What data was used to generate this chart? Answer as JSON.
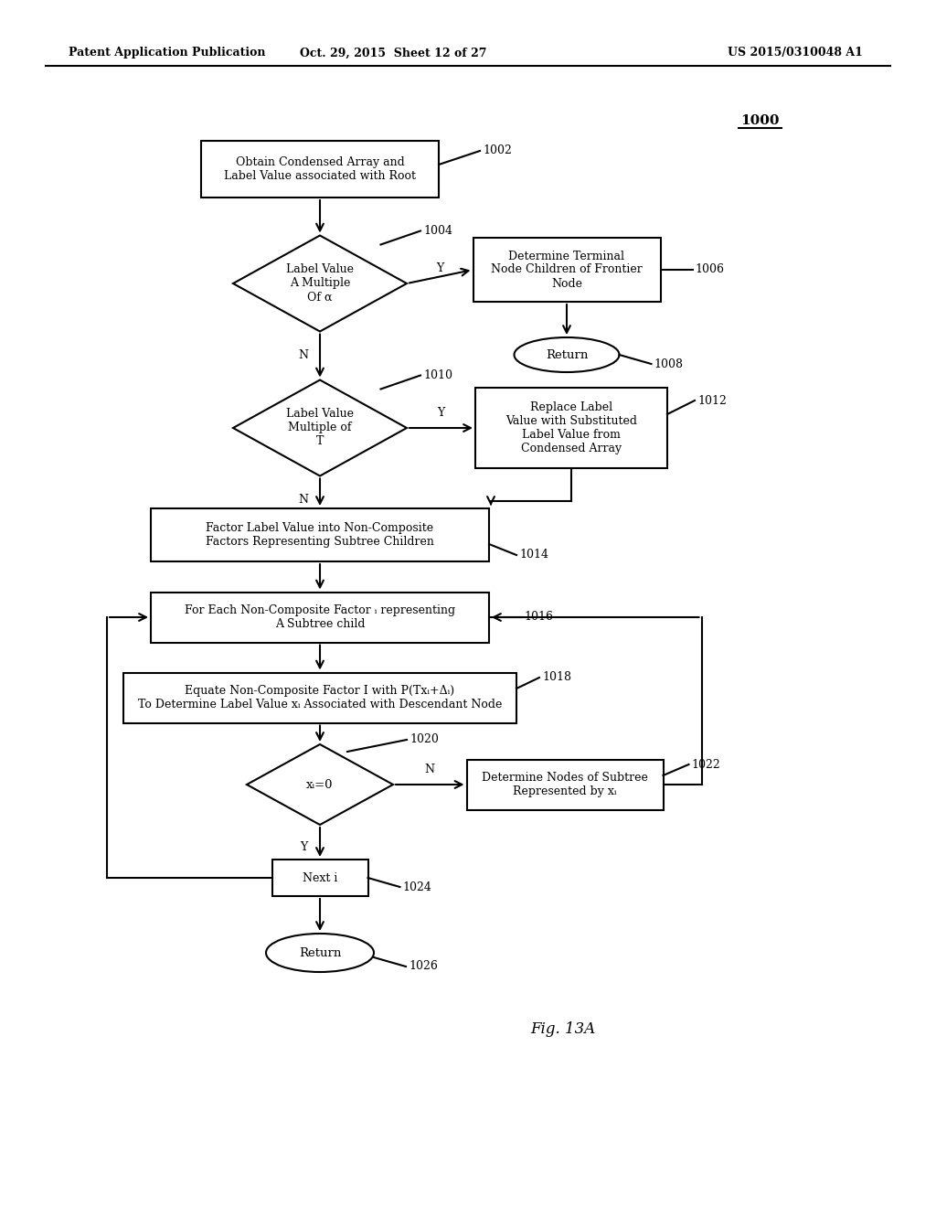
{
  "bg_color": "#ffffff",
  "header_left": "Patent Application Publication",
  "header_mid": "Oct. 29, 2015  Sheet 12 of 27",
  "header_right": "US 2015/0310048 A1",
  "fig_label": "Fig. 13A",
  "diagram_ref": "1000"
}
